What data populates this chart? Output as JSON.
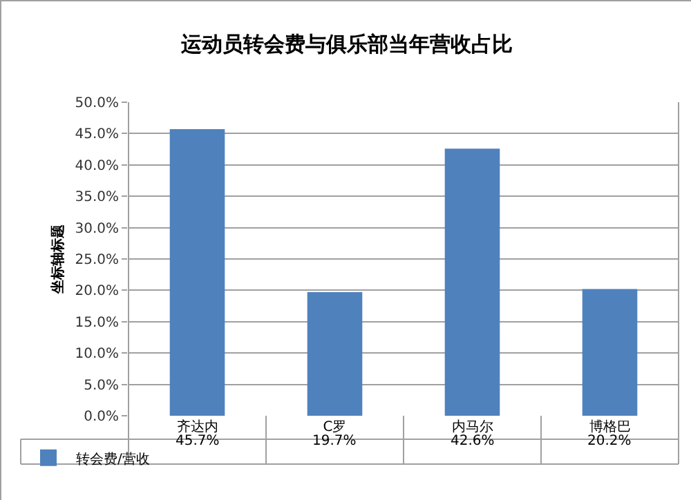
{
  "chart_data": {
    "type": "bar",
    "title": "运动员转会费与俱乐部当年营收占比",
    "ylabel": "坐标轴标题",
    "categories": [
      "齐达内",
      "C罗",
      "内马尔",
      "博格巴"
    ],
    "series": [
      {
        "name": "转会费/营收",
        "color": "#4f81bd",
        "values": [
          45.7,
          19.7,
          42.6,
          20.2
        ],
        "value_labels": [
          "45.7%",
          "19.7%",
          "42.6%",
          "20.2%"
        ]
      }
    ],
    "ylim": [
      0,
      50
    ],
    "yticks": [
      {
        "value": 0,
        "label": "0.0%"
      },
      {
        "value": 5,
        "label": "5.0%"
      },
      {
        "value": 10,
        "label": "10.0%"
      },
      {
        "value": 15,
        "label": "15.0%"
      },
      {
        "value": 20,
        "label": "20.0%"
      },
      {
        "value": 25,
        "label": "25.0%"
      },
      {
        "value": 30,
        "label": "30.0%"
      },
      {
        "value": 35,
        "label": "35.0%"
      },
      {
        "value": 40,
        "label": "40.0%"
      },
      {
        "value": 45,
        "label": "45.0%"
      },
      {
        "value": 50,
        "label": "50.0%"
      }
    ],
    "grid": "y",
    "legend": "bottom left"
  }
}
